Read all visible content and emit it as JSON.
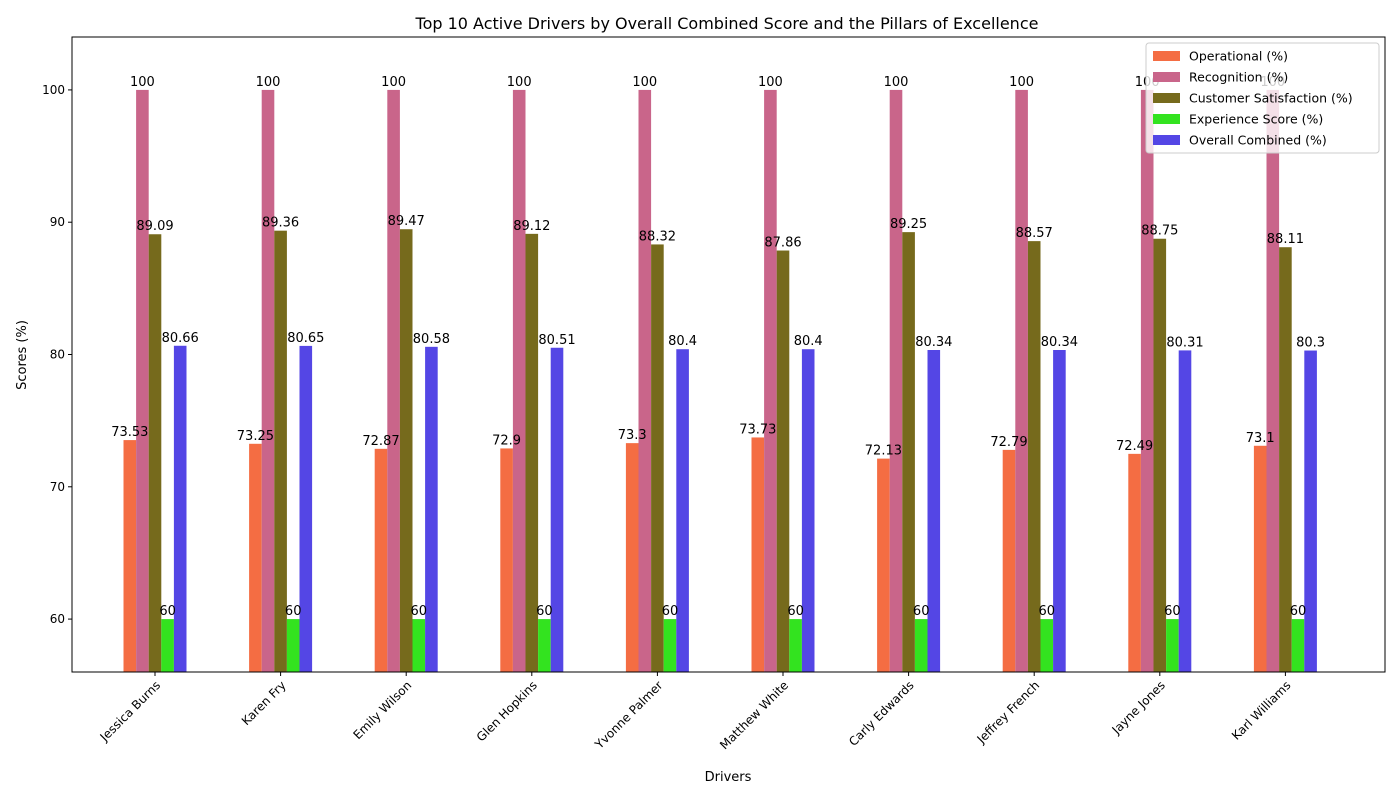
{
  "chart_data": {
    "type": "bar",
    "title": "Top 10 Active Drivers by Overall Combined Score and the Pillars of Excellence",
    "xlabel": "Drivers",
    "ylabel": "Scores (%)",
    "ylim": [
      56,
      104
    ],
    "yticks": [
      60,
      70,
      80,
      90,
      100
    ],
    "grid": false,
    "legend_position": "top-right",
    "categories": [
      "Jessica Burns",
      "Karen Fry",
      "Emily Wilson",
      "Glen Hopkins",
      "Yvonne Palmer",
      "Matthew White",
      "Carly Edwards",
      "Jeffrey French",
      "Jayne Jones",
      "Karl Williams"
    ],
    "series": [
      {
        "name": "Operational (%)",
        "color": "#f46d43",
        "values": [
          73.53,
          73.25,
          72.87,
          72.9,
          73.3,
          73.73,
          72.13,
          72.79,
          72.49,
          73.1
        ]
      },
      {
        "name": "Recognition (%)",
        "color": "#c9658a",
        "values": [
          100,
          100,
          100,
          100,
          100,
          100,
          100,
          100,
          100,
          100
        ]
      },
      {
        "name": "Customer Satisfaction (%)",
        "color": "#766a1c",
        "values": [
          89.09,
          89.36,
          89.47,
          89.12,
          88.32,
          87.86,
          89.25,
          88.57,
          88.75,
          88.11
        ]
      },
      {
        "name": "Experience Score (%)",
        "color": "#33e31f",
        "values": [
          60,
          60,
          60,
          60,
          60,
          60,
          60,
          60,
          60,
          60
        ]
      },
      {
        "name": "Overall Combined (%)",
        "color": "#5446e5",
        "values": [
          80.66,
          80.65,
          80.58,
          80.51,
          80.4,
          80.4,
          80.34,
          80.34,
          80.31,
          80.3
        ]
      }
    ]
  }
}
